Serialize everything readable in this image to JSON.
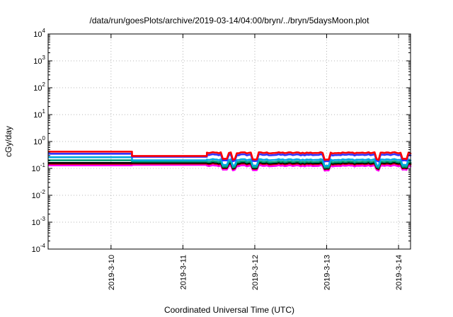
{
  "chart_data": {
    "type": "line",
    "title": "/data/run/goesPlots/archive/2019-03-14/04:00/bryn/../bryn/5daysMoon.plot",
    "xlabel": "Coordinated Universal Time (UTC)",
    "ylabel": "cGy/day",
    "yscale": "log",
    "ylim": [
      0.0001,
      10000
    ],
    "y_ticks": [
      {
        "value": 0.0001,
        "base": "10",
        "exp": "-4"
      },
      {
        "value": 0.001,
        "base": "10",
        "exp": "-3"
      },
      {
        "value": 0.01,
        "base": "10",
        "exp": "-2"
      },
      {
        "value": 0.1,
        "base": "10",
        "exp": "-1"
      },
      {
        "value": 1,
        "base": "10",
        "exp": "0"
      },
      {
        "value": 10,
        "base": "10",
        "exp": "1"
      },
      {
        "value": 100,
        "base": "10",
        "exp": "2"
      },
      {
        "value": 1000,
        "base": "10",
        "exp": "3"
      },
      {
        "value": 10000,
        "base": "10",
        "exp": "4"
      }
    ],
    "xlim": [
      "2019-03-09T03:00",
      "2019-03-14T04:00"
    ],
    "x_ticks": [
      {
        "value": "2019-03-10T00:00",
        "label": "2019-3-10"
      },
      {
        "value": "2019-03-11T00:00",
        "label": "2019-3-11"
      },
      {
        "value": "2019-03-12T00:00",
        "label": "2019-3-12"
      },
      {
        "value": "2019-03-13T00:00",
        "label": "2019-3-13"
      },
      {
        "value": "2019-03-14T00:00",
        "label": "2019-3-14"
      }
    ],
    "grid": true,
    "dip_times": [
      "2019-03-11T14:00",
      "2019-03-11T17:00",
      "2019-03-12T00:00",
      "2019-03-13T00:00",
      "2019-03-13T17:00",
      "2019-03-14T02:00"
    ],
    "series": [
      {
        "color": "#ff00ff",
        "values": [
          [
            "2019-03-09T03:00",
            0.13
          ],
          [
            "2019-03-10T07:00",
            0.13
          ],
          [
            "2019-03-10T07:00",
            0.135
          ],
          [
            "2019-03-11T08:00",
            0.135
          ],
          [
            "2019-03-11T08:00",
            0.125
          ],
          [
            "2019-03-14T04:00",
            0.125
          ]
        ]
      },
      {
        "color": "#d00000",
        "values": [
          [
            "2019-03-09T03:00",
            0.148
          ],
          [
            "2019-03-10T07:00",
            0.148
          ],
          [
            "2019-03-10T07:00",
            0.15
          ],
          [
            "2019-03-11T08:00",
            0.15
          ],
          [
            "2019-03-11T08:00",
            0.145
          ],
          [
            "2019-03-14T04:00",
            0.145
          ]
        ]
      },
      {
        "color": "#000000",
        "values": [
          [
            "2019-03-09T03:00",
            0.16
          ],
          [
            "2019-03-10T07:00",
            0.16
          ],
          [
            "2019-03-10T07:00",
            0.162
          ],
          [
            "2019-03-11T08:00",
            0.162
          ],
          [
            "2019-03-11T08:00",
            0.158
          ],
          [
            "2019-03-14T04:00",
            0.158
          ]
        ]
      },
      {
        "color": "#009e73",
        "values": [
          [
            "2019-03-09T03:00",
            0.2
          ],
          [
            "2019-03-10T07:00",
            0.2
          ],
          [
            "2019-03-10T07:00",
            0.18
          ],
          [
            "2019-03-11T08:00",
            0.18
          ],
          [
            "2019-03-11T08:00",
            0.175
          ],
          [
            "2019-03-14T04:00",
            0.175
          ]
        ]
      },
      {
        "color": "#00a8e0",
        "values": [
          [
            "2019-03-09T03:00",
            0.26
          ],
          [
            "2019-03-10T07:00",
            0.26
          ],
          [
            "2019-03-10T07:00",
            0.2
          ],
          [
            "2019-03-11T08:00",
            0.2
          ],
          [
            "2019-03-11T08:00",
            0.21
          ],
          [
            "2019-03-14T04:00",
            0.21
          ]
        ]
      },
      {
        "color": "#3333ff",
        "values": [
          [
            "2019-03-09T03:00",
            0.35
          ],
          [
            "2019-03-10T07:00",
            0.35
          ],
          [
            "2019-03-10T07:00",
            0.27
          ],
          [
            "2019-03-11T08:00",
            0.27
          ],
          [
            "2019-03-11T08:00",
            0.32
          ],
          [
            "2019-03-14T04:00",
            0.32
          ]
        ]
      },
      {
        "color": "#ff0000",
        "values": [
          [
            "2019-03-09T03:00",
            0.42
          ],
          [
            "2019-03-10T07:00",
            0.42
          ],
          [
            "2019-03-10T07:00",
            0.29
          ],
          [
            "2019-03-11T08:00",
            0.29
          ],
          [
            "2019-03-11T08:00",
            0.38
          ],
          [
            "2019-03-14T04:00",
            0.38
          ]
        ]
      }
    ]
  }
}
